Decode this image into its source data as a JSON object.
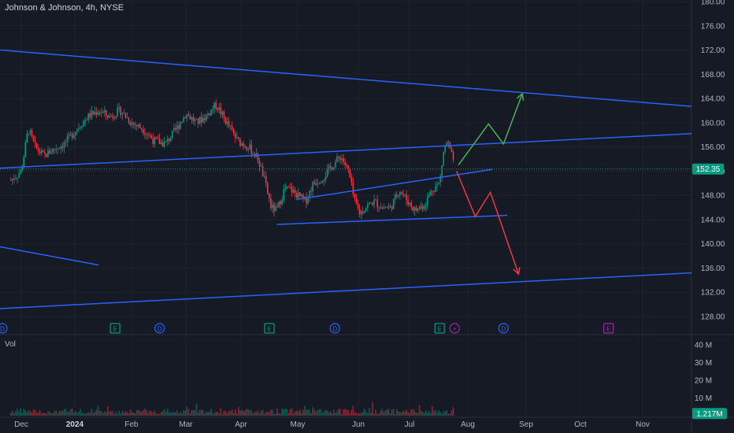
{
  "title": "Johnson & Johnson, 4h, NYSE",
  "volume_label": "Vol",
  "chart_data": {
    "type": "candlestick",
    "title": "Johnson & Johnson, 4h, NYSE",
    "y_ticks": [
      "180.00",
      "176.00",
      "172.00",
      "168.00",
      "164.00",
      "160.00",
      "156.00",
      "152.00",
      "148.00",
      "144.00",
      "140.00",
      "136.00",
      "132.00",
      "128.00"
    ],
    "ylim": [
      126,
      181
    ],
    "last_price": "152.35",
    "x_labels": [
      {
        "label": "Dec",
        "bold": false
      },
      {
        "label": "2024",
        "bold": true
      },
      {
        "label": "Feb",
        "bold": false
      },
      {
        "label": "Mar",
        "bold": false
      },
      {
        "label": "Apr",
        "bold": false
      },
      {
        "label": "May",
        "bold": false
      },
      {
        "label": "Jun",
        "bold": false
      },
      {
        "label": "Jul",
        "bold": false
      },
      {
        "label": "Aug",
        "bold": false
      },
      {
        "label": "Sep",
        "bold": false
      },
      {
        "label": "Oct",
        "bold": false
      },
      {
        "label": "Nov",
        "bold": false
      }
    ],
    "volume_ticks": [
      "40 M",
      "30 M",
      "20 M",
      "10 M"
    ],
    "volume_ylim": [
      0,
      45
    ],
    "last_volume": "1.217M",
    "price_path": [
      {
        "date": "Nov 25",
        "price": 150.5
      },
      {
        "date": "Dec 1",
        "price": 152
      },
      {
        "date": "Dec 5",
        "price": 159
      },
      {
        "date": "Dec 9",
        "price": 156
      },
      {
        "date": "Dec 14",
        "price": 154.5
      },
      {
        "date": "Dec 19",
        "price": 155.5
      },
      {
        "date": "Dec 26",
        "price": 156.5
      },
      {
        "date": "Jan 2",
        "price": 159
      },
      {
        "date": "Jan 8",
        "price": 161
      },
      {
        "date": "Jan 14",
        "price": 162
      },
      {
        "date": "Jan 20",
        "price": 161
      },
      {
        "date": "Jan 26",
        "price": 162
      },
      {
        "date": "Feb 1",
        "price": 160
      },
      {
        "date": "Feb 7",
        "price": 159
      },
      {
        "date": "Feb 13",
        "price": 157
      },
      {
        "date": "Feb 19",
        "price": 156.5
      },
      {
        "date": "Feb 25",
        "price": 159
      },
      {
        "date": "Mar 1",
        "price": 161.5
      },
      {
        "date": "Mar 7",
        "price": 160
      },
      {
        "date": "Mar 12",
        "price": 161
      },
      {
        "date": "Mar 18",
        "price": 163
      },
      {
        "date": "Mar 24",
        "price": 160
      },
      {
        "date": "Mar 30",
        "price": 157
      },
      {
        "date": "Apr 5",
        "price": 156
      },
      {
        "date": "Apr 10",
        "price": 154
      },
      {
        "date": "Apr 13",
        "price": 151
      },
      {
        "date": "Apr 17",
        "price": 146
      },
      {
        "date": "Apr 20",
        "price": 145.5
      },
      {
        "date": "Apr 24",
        "price": 149
      },
      {
        "date": "Apr 27",
        "price": 149
      },
      {
        "date": "May 1",
        "price": 148
      },
      {
        "date": "May 5",
        "price": 147
      },
      {
        "date": "May 9",
        "price": 150
      },
      {
        "date": "May 14",
        "price": 151
      },
      {
        "date": "May 19",
        "price": 153
      },
      {
        "date": "May 23",
        "price": 154.5
      },
      {
        "date": "May 27",
        "price": 152
      },
      {
        "date": "May 30",
        "price": 147
      },
      {
        "date": "Jun 2",
        "price": 145
      },
      {
        "date": "Jun 5",
        "price": 146
      },
      {
        "date": "Jun 10",
        "price": 147
      },
      {
        "date": "Jun 15",
        "price": 146
      },
      {
        "date": "Jun 20",
        "price": 146
      },
      {
        "date": "Jun 25",
        "price": 149
      },
      {
        "date": "Jun 30",
        "price": 147
      },
      {
        "date": "Jul 4",
        "price": 145.5
      },
      {
        "date": "Jul 9",
        "price": 146.5
      },
      {
        "date": "Jul 13",
        "price": 149
      },
      {
        "date": "Jul 17",
        "price": 150
      },
      {
        "date": "Jul 19",
        "price": 155
      },
      {
        "date": "Jul 21",
        "price": 157
      },
      {
        "date": "Jul 23",
        "price": 155
      },
      {
        "date": "Jul 25",
        "price": 152.5
      }
    ],
    "trendlines": [
      {
        "name": "upper-channel",
        "color": "#2962ff",
        "from": {
          "date": "Nov 25",
          "price": 172
        },
        "to": {
          "date": "Nov 30 (next year)",
          "price": 162.7
        }
      },
      {
        "name": "middle-channel",
        "color": "#2962ff",
        "from": {
          "date": "Nov 25",
          "price": 152.5
        },
        "to": {
          "date": "Nov 30 (next year)",
          "price": 158.2
        }
      },
      {
        "name": "lower-channel",
        "color": "#2962ff",
        "from": {
          "date": "Nov 25",
          "price": 129.3
        },
        "to": {
          "date": "Nov 30 (next year)",
          "price": 135.2
        }
      },
      {
        "name": "short-left-line",
        "color": "#2962ff",
        "from": {
          "date": "Nov 25",
          "price": 139.5
        },
        "to": {
          "date": "Jan 14",
          "price": 136.5
        }
      },
      {
        "name": "wedge-lower",
        "color": "#2962ff",
        "from": {
          "date": "Apr 20",
          "price": 143.2
        },
        "to": {
          "date": "Aug 22",
          "price": 144.7
        }
      },
      {
        "name": "wedge-upper",
        "color": "#2962ff",
        "from": {
          "date": "Apr 30",
          "price": 147.3
        },
        "to": {
          "date": "Aug 14",
          "price": 152.3
        }
      }
    ],
    "projections": [
      {
        "name": "bullish-projection",
        "color": "#4caf50",
        "points": [
          {
            "date": "Jul 27",
            "price": 153
          },
          {
            "date": "Aug 12",
            "price": 159.8
          },
          {
            "date": "Aug 20",
            "price": 156.5
          },
          {
            "date": "Aug 30",
            "price": 164.8
          }
        ]
      },
      {
        "name": "bearish-projection",
        "color": "#f23645",
        "points": [
          {
            "date": "Jul 26",
            "price": 152
          },
          {
            "date": "Aug 5",
            "price": 144.5
          },
          {
            "date": "Aug 13",
            "price": 148.5
          },
          {
            "date": "Aug 28",
            "price": 135
          }
        ]
      }
    ],
    "event_markers": [
      {
        "type": "dividend",
        "letter": "D",
        "color": "#2962ff",
        "date": "Nov 25"
      },
      {
        "type": "earnings",
        "letter": "E",
        "color": "#089981",
        "date": "Jan 23"
      },
      {
        "type": "dividend",
        "letter": "D",
        "color": "#2962ff",
        "date": "Feb 16"
      },
      {
        "type": "earnings",
        "letter": "E",
        "color": "#089981",
        "date": "Apr 16"
      },
      {
        "type": "dividend",
        "letter": "D",
        "color": "#2962ff",
        "date": "May 20"
      },
      {
        "type": "earnings",
        "letter": "E",
        "color": "#089981",
        "date": "Jul 17"
      },
      {
        "type": "split-flash",
        "letter": "⚡",
        "color": "#9c27b0",
        "date": "Jul 25"
      },
      {
        "type": "dividend",
        "letter": "D",
        "color": "#2962ff",
        "date": "Aug 20"
      },
      {
        "type": "earnings",
        "letter": "E",
        "color": "#9c27b0",
        "date": "Oct 15"
      }
    ],
    "colors": {
      "background": "#161a25",
      "up": "#089981",
      "down": "#f23645",
      "trendline": "#2962ff",
      "price_badge": "#089981",
      "grid": "#1f2330"
    }
  }
}
